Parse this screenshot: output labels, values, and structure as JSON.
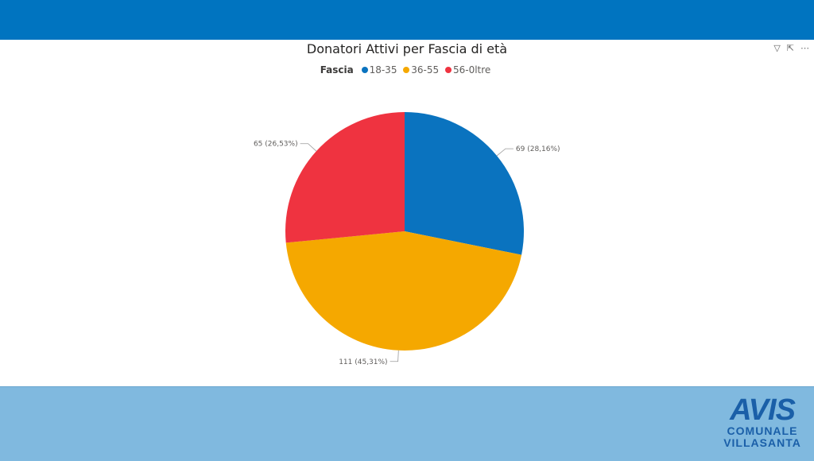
{
  "chart_data": {
    "type": "pie",
    "title": "Donatori Attivi per Fascia di età",
    "legend_title": "Fascia",
    "legend_position": "top",
    "categories": [
      "18-35",
      "36-55",
      "56-0ltre"
    ],
    "values": [
      69,
      111,
      65
    ],
    "data_labels": [
      "69 (28,16%)",
      "111 (45,31%)",
      "65 (26,53%)"
    ],
    "colors": [
      "#0a73bf",
      "#f5a800",
      "#ef3340"
    ]
  },
  "visual_icons": [
    "filter-icon",
    "focus-mode-icon",
    "more-options-icon"
  ],
  "logo": {
    "brand": "AVIS",
    "line1": "COMUNALE",
    "line2": "VILLASANTA"
  },
  "colors": {
    "header": "#0074c0",
    "footer": "#80b9df"
  }
}
